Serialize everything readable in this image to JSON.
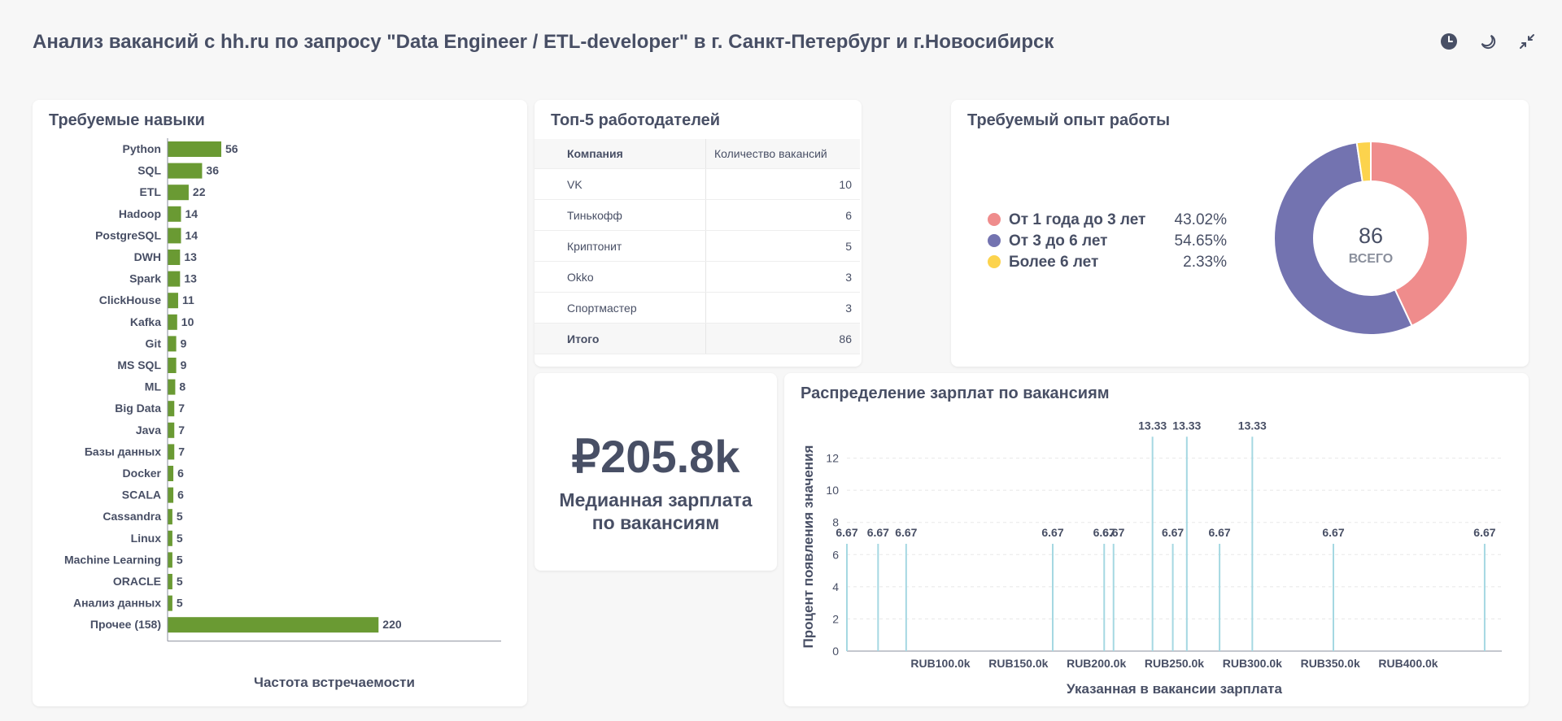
{
  "header": {
    "title": "Анализ вакансий с hh.ru по запросу \"Data Engineer / ETL-developer\" в г. Санкт-Петербург и г.Новосибирск"
  },
  "skills_card": {
    "title": "Требуемые навыки",
    "xlabel": "Частота встречаемости"
  },
  "employers_card": {
    "title": "Топ-5 работодателей",
    "col_company": "Компания",
    "col_count": "Количество вакансий",
    "rows": [
      {
        "company": "VK",
        "count": "10"
      },
      {
        "company": "Тинькофф",
        "count": "6"
      },
      {
        "company": "Криптонит",
        "count": "5"
      },
      {
        "company": "Okko",
        "count": "3"
      },
      {
        "company": "Спортмастер",
        "count": "3"
      }
    ],
    "total_label": "Итого",
    "total_value": "86"
  },
  "experience_card": {
    "title": "Требуемый опыт работы",
    "center_value": "86",
    "center_label": "ВСЕГО"
  },
  "median_card": {
    "value": "₽205.8k",
    "label_line1": "Медианная зарплата",
    "label_line2": "по вакансиям"
  },
  "salary_card": {
    "title": "Распределение зарплат по вакансиям"
  },
  "chart_data": [
    {
      "type": "bar",
      "orientation": "horizontal",
      "title": "Требуемые навыки",
      "xlabel": "Частота встречаемости",
      "ylabel": "",
      "categories": [
        "Python",
        "SQL",
        "ETL",
        "Hadoop",
        "PostgreSQL",
        "DWH",
        "Spark",
        "ClickHouse",
        "Kafka",
        "Git",
        "MS SQL",
        "ML",
        "Big Data",
        "Java",
        "Базы данных",
        "Docker",
        "SCALA",
        "Cassandra",
        "Linux",
        "Machine Learning",
        "ORACLE",
        "Анализ данных",
        "Прочее (158)"
      ],
      "values": [
        56,
        36,
        22,
        14,
        14,
        13,
        13,
        11,
        10,
        9,
        9,
        8,
        7,
        7,
        7,
        6,
        6,
        5,
        5,
        5,
        5,
        5,
        220
      ],
      "xlim": [
        0,
        280
      ],
      "color": "#6a9a33",
      "grid": false
    },
    {
      "type": "pie",
      "donut": true,
      "title": "Требуемый опыт работы",
      "categories": [
        "От 1 года до 3 лет",
        "От 3 до 6 лет",
        "Более 6 лет"
      ],
      "values": [
        43.02,
        54.65,
        2.33
      ],
      "labels": [
        "43.02%",
        "54.65%",
        "2.33%"
      ],
      "colors": [
        "#ef8c8c",
        "#7373b0",
        "#fcd34d"
      ],
      "total": 86,
      "legend": "left"
    },
    {
      "type": "bar",
      "title": "Распределение зарплат по вакансиям",
      "xlabel": "Указанная в вакансии зарплата",
      "ylabel": "Процент появления значения",
      "x": [
        40000,
        60000,
        78000,
        172000,
        205000,
        211000,
        236000,
        249000,
        258000,
        279000,
        300000,
        352000,
        449000
      ],
      "values": [
        6.67,
        6.67,
        6.67,
        6.67,
        6.67,
        6.67,
        13.33,
        6.67,
        13.33,
        6.67,
        13.33,
        6.67,
        6.67
      ],
      "labels": [
        "6.67",
        "6.67",
        "6.67",
        "6.67",
        "6.67",
        "6.67",
        "13.33",
        "6.67",
        "13.33",
        "6.67",
        "13.33",
        "6.67",
        "6.67"
      ],
      "xticks": [
        "RUB100.0k",
        "RUB150.0k",
        "RUB200.0k",
        "RUB250.0k",
        "RUB300.0k",
        "RUB350.0k",
        "RUB400.0k"
      ],
      "xtick_values": [
        100000,
        150000,
        200000,
        250000,
        300000,
        350000,
        400000
      ],
      "yticks": [
        0,
        2,
        4,
        6,
        8,
        10,
        12
      ],
      "xlim": [
        40000,
        460000
      ],
      "ylim": [
        0,
        14
      ],
      "color": "#a5d8e2",
      "grid": true
    }
  ]
}
